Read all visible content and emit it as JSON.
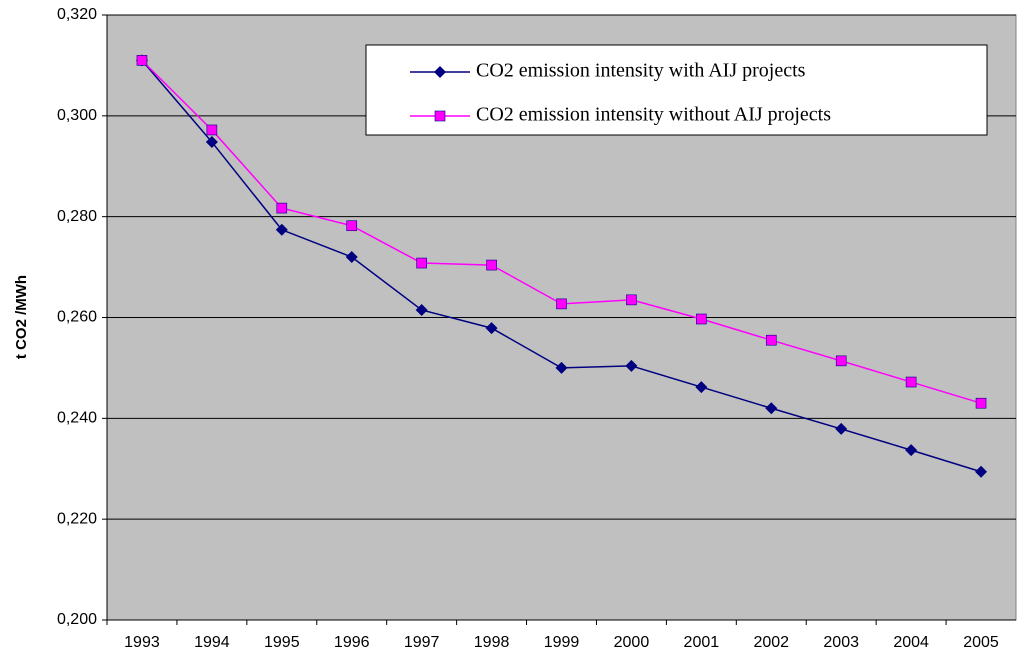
{
  "chart_data": {
    "type": "line",
    "y_label": "t CO2 /MWh",
    "categories": [
      "1993",
      "1994",
      "1995",
      "1996",
      "1997",
      "1998",
      "1999",
      "2000",
      "2001",
      "2002",
      "2003",
      "2004",
      "2005"
    ],
    "series": [
      {
        "name": "CO2 emission intensity with AIJ projects",
        "color": "#000080",
        "marker": "diamond",
        "values": [
          0.311,
          0.2948,
          0.2774,
          0.272,
          0.2615,
          0.2579,
          0.25,
          0.2504,
          0.2462,
          0.242,
          0.2379,
          0.2337,
          0.2294
        ]
      },
      {
        "name": "CO2 emission intensity without AIJ projects",
        "color": "#ff00ff",
        "marker": "square",
        "values": [
          0.311,
          0.2972,
          0.2817,
          0.2782,
          0.2708,
          0.2704,
          0.2627,
          0.2635,
          0.2597,
          0.2555,
          0.2514,
          0.2472,
          0.243
        ]
      }
    ],
    "ylim": [
      0.2,
      0.32
    ],
    "yticks": [
      {
        "value": 0.2,
        "label": "0,200"
      },
      {
        "value": 0.22,
        "label": "0,220"
      },
      {
        "value": 0.24,
        "label": "0,240"
      },
      {
        "value": 0.26,
        "label": "0,260"
      },
      {
        "value": 0.28,
        "label": "0,280"
      },
      {
        "value": 0.3,
        "label": "0,300"
      },
      {
        "value": 0.32,
        "label": "0,320"
      }
    ],
    "grid": true,
    "legend": "upper right"
  }
}
